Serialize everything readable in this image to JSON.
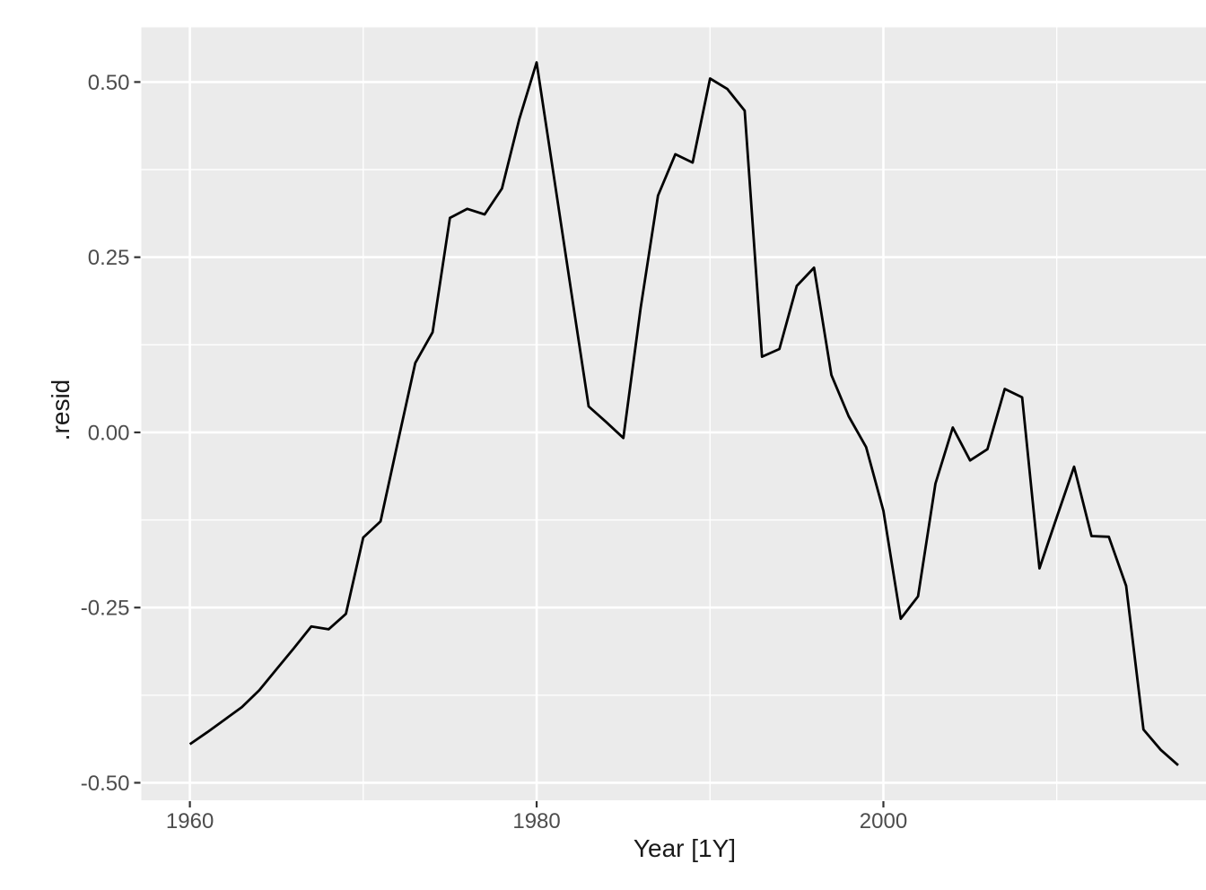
{
  "chart_data": {
    "type": "line",
    "title": "",
    "xlabel": "Year [1Y]",
    "ylabel": ".resid",
    "legend": "none",
    "grid": "on",
    "panel_background": "gray",
    "x_domain": [
      1957.2,
      2019.9
    ],
    "y_domain": [
      -0.525,
      0.578
    ],
    "x_breaks": [
      1960,
      1980,
      2000
    ],
    "x_break_labels": [
      "1960",
      "1980",
      "2000"
    ],
    "x_minor_breaks": [
      1970,
      1990,
      2010
    ],
    "y_breaks": [
      0.5,
      0.25,
      0,
      -0.25,
      -0.5
    ],
    "y_break_labels": [
      "0.50",
      "0.25",
      "0.00",
      "-0.25",
      "-0.50"
    ],
    "y_minor_breaks": [
      0.375,
      0.125,
      -0.125,
      -0.375
    ],
    "series": [
      {
        "name": ".resid",
        "x": [
          1960,
          1961,
          1962,
          1963,
          1964,
          1965,
          1966,
          1967,
          1968,
          1969,
          1970,
          1971,
          1972,
          1973,
          1974,
          1975,
          1976,
          1977,
          1978,
          1979,
          1980,
          1981,
          1982,
          1983,
          1984,
          1985,
          1986,
          1987,
          1988,
          1989,
          1990,
          1991,
          1992,
          1993,
          1994,
          1995,
          1996,
          1997,
          1998,
          1999,
          2000,
          2001,
          2002,
          2003,
          2004,
          2005,
          2006,
          2007,
          2008,
          2009,
          2010,
          2011,
          2012,
          2013,
          2014,
          2015,
          2016,
          2017
        ],
        "y": [
          -0.445,
          -0.428,
          -0.41,
          -0.392,
          -0.368,
          -0.338,
          -0.308,
          -0.277,
          -0.281,
          -0.259,
          -0.15,
          -0.127,
          -0.013,
          0.099,
          0.143,
          0.306,
          0.319,
          0.311,
          0.348,
          0.447,
          0.528,
          0.364,
          0.2,
          0.037,
          0.015,
          -0.008,
          0.178,
          0.338,
          0.397,
          0.385,
          0.505,
          0.49,
          0.459,
          0.108,
          0.119,
          0.209,
          0.235,
          0.082,
          0.023,
          -0.021,
          -0.112,
          -0.266,
          -0.234,
          -0.073,
          0.007,
          -0.04,
          -0.024,
          0.062,
          0.05,
          -0.194,
          -0.121,
          -0.049,
          -0.148,
          -0.149,
          -0.219,
          -0.424,
          -0.453,
          -0.475
        ]
      }
    ],
    "colors": {
      "page_bg": "#FFFFFF",
      "panel_bg": "#EBEBEB",
      "grid": "#FFFFFF",
      "line": "#000000",
      "tick_label": "#4D4D4D",
      "tick_mark": "#333333",
      "axis_title": "#1A1A1A"
    }
  }
}
